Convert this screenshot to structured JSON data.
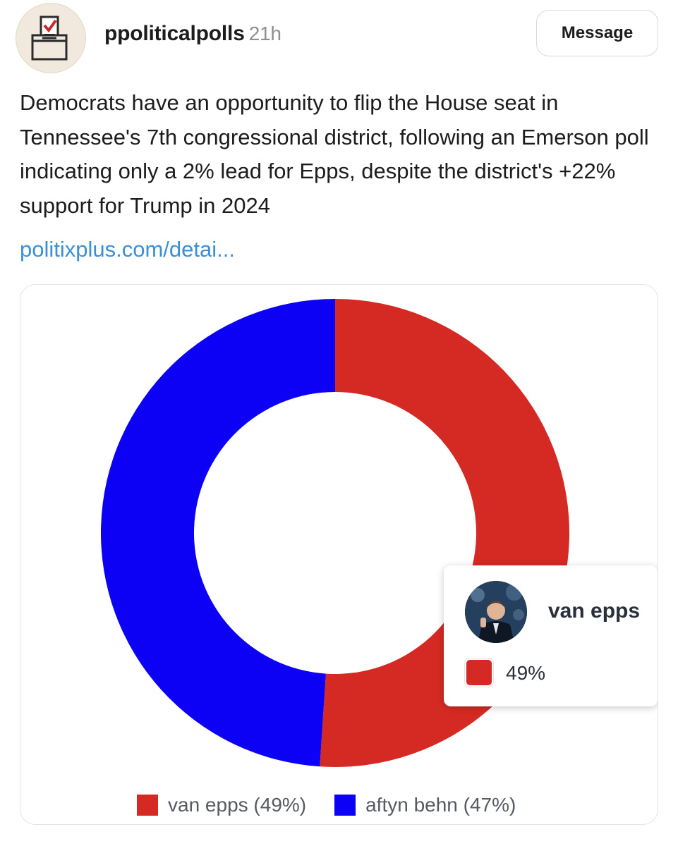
{
  "post": {
    "username": "ppoliticalpolls",
    "time_ago": "21h",
    "message_button": "Message",
    "text": "Democrats have an opportunity to flip the House seat in Tennessee's 7th congressional district, following an Emerson poll indicating only a 2% lead for Epps, despite the district's +22% support for Trump in 2024",
    "link": "politixplus.com/detai..."
  },
  "chart_data": {
    "type": "pie",
    "style": "donut",
    "categories": [
      "van epps",
      "aftyn behn"
    ],
    "values": [
      49,
      47
    ],
    "colors": [
      "#d42a23",
      "#0c00f5"
    ],
    "legend": {
      "placement": "bottom",
      "items": [
        "van epps (49%)",
        "aftyn behn (47%)"
      ]
    },
    "tooltip": {
      "name": "van epps",
      "value": "49%"
    }
  },
  "icons": {
    "avatar": "ballot-box-icon",
    "tooltip_photo": "candidate-photo"
  }
}
